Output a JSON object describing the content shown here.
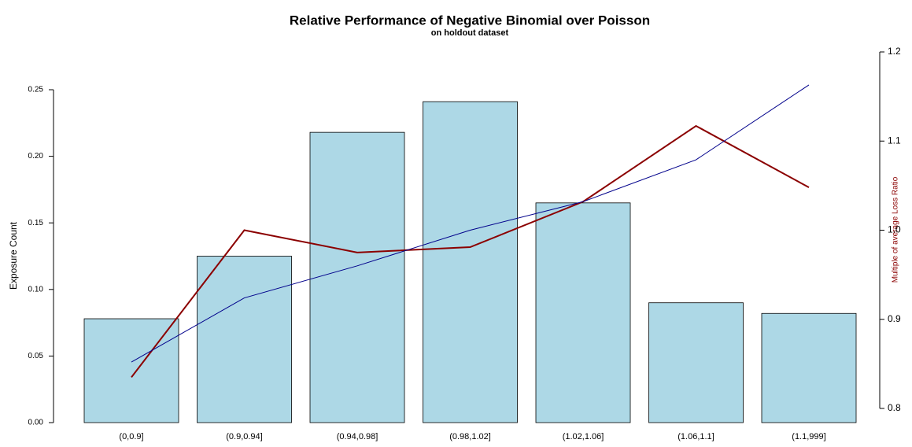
{
  "chart_data": {
    "type": "bar",
    "title": "Relative Performance of Negative Binomial over Poisson",
    "subtitle": "on holdout dataset",
    "y_label": "Exposure Count",
    "y2_label": "Multiple of average Loss Ratio",
    "y2_label_color": "#8b0000",
    "categories": [
      "(0,0.9]",
      "(0.9,0.94]",
      "(0.94,0.98]",
      "(0.98,1.02]",
      "(1.02,1.06]",
      "(1.06,1.1]",
      "(1.1,999]"
    ],
    "series": [
      {
        "type": "bar",
        "color": "#add8e6",
        "axis": "y",
        "values": [
          0.078,
          0.125,
          0.218,
          0.241,
          0.165,
          0.09,
          0.082
        ]
      },
      {
        "type": "line",
        "color": "#8b0000",
        "axis": "y2",
        "values": [
          0.835,
          1.0,
          0.975,
          0.981,
          1.032,
          1.117,
          1.048
        ]
      },
      {
        "type": "line",
        "color": "#00008b",
        "axis": "y2",
        "values": [
          0.852,
          0.924,
          0.96,
          1.0,
          1.032,
          1.079,
          1.163
        ]
      }
    ],
    "ylim": [
      0,
      0.25
    ],
    "yticks": [
      {
        "value": 0,
        "label": "0.00"
      },
      0.05,
      {
        "value": 0.1,
        "label": "0.10"
      },
      0.15,
      {
        "value": 0.2,
        "label": "0.20"
      },
      0.25
    ],
    "y2lim": [
      0.8,
      1.2
    ],
    "y2ticks": [
      0.8,
      0.9,
      {
        "value": 1.0,
        "label": "1.0"
      },
      1.1,
      1.2
    ]
  }
}
